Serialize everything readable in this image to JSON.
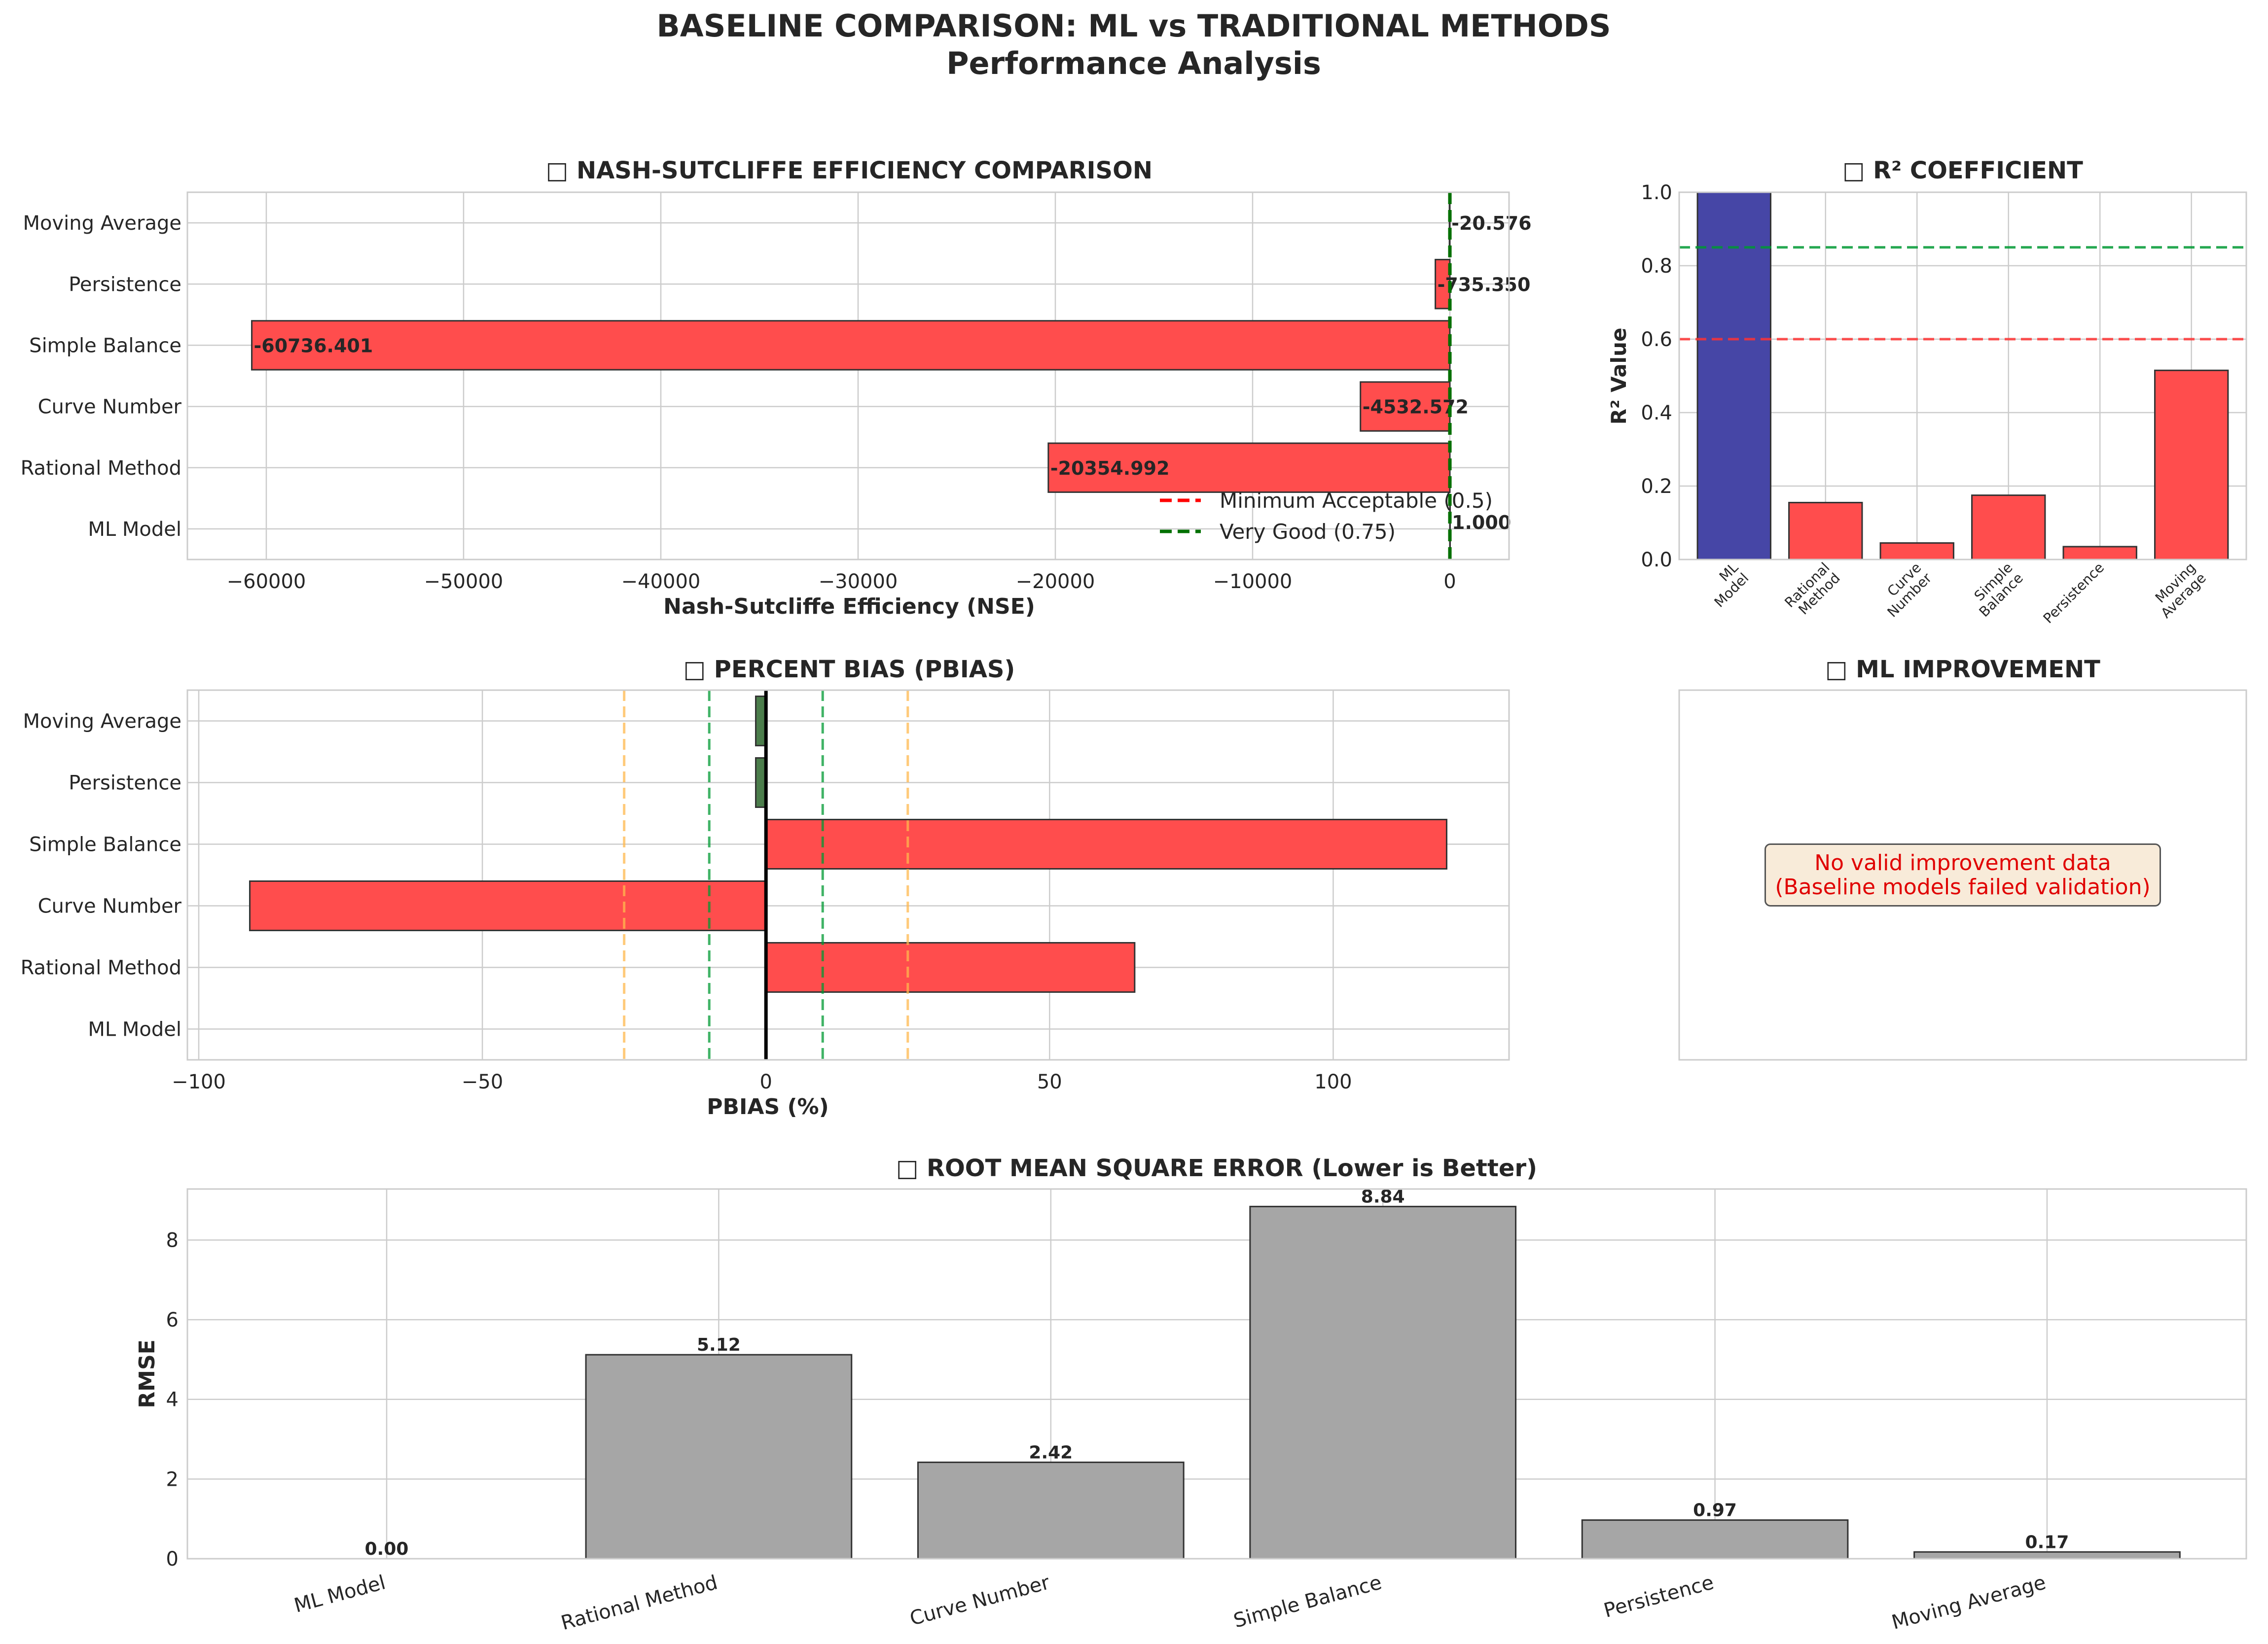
{
  "figure": {
    "title_line1": "BASELINE COMPARISON: ML vs TRADITIONAL METHODS",
    "title_line2": "Performance Analysis"
  },
  "colors": {
    "bad": "#ff4d4d",
    "good": "#4b7d4b",
    "ml": "#4646a6",
    "neutral": "#a6a6a6",
    "ref_red": "#ff3333",
    "ref_green": "#009933",
    "ref_orange": "#ffb84d"
  },
  "chart_data": [
    {
      "id": "nse",
      "type": "bar",
      "orientation": "horizontal",
      "title": "□ NASH-SUTCLIFFE EFFICIENCY COMPARISON",
      "xlabel": "Nash-Sutcliffe Efficiency (NSE)",
      "categories": [
        "ML Model",
        "Rational Method",
        "Curve Number",
        "Simple Balance",
        "Persistence",
        "Moving Average"
      ],
      "values": [
        1.0,
        -20354.992,
        -4532.572,
        -60736.401,
        -735.35,
        -20.576
      ],
      "labels": [
        "1.000",
        "-20354.992",
        "-4532.572",
        "-60736.401",
        "-735.350",
        "-20.576"
      ],
      "xlim": [
        -64000,
        3000
      ],
      "xticks": [
        -60000,
        -50000,
        -40000,
        -30000,
        -20000,
        -10000,
        0
      ],
      "xtick_labels": [
        "−60000",
        "−50000",
        "−40000",
        "−30000",
        "−20000",
        "−10000",
        "0"
      ],
      "reference_lines": [
        {
          "value": 0.5,
          "label": "Minimum Acceptable (0.5)",
          "color": "red"
        },
        {
          "value": 0.75,
          "label": "Very Good (0.75)",
          "color": "green"
        }
      ],
      "legend": "lower-right",
      "grid": true
    },
    {
      "id": "r2",
      "type": "bar",
      "title": "□ R² COEFFICIENT",
      "ylabel": "R² Value",
      "categories": [
        "ML\nModel",
        "Rational\nMethod",
        "Curve\nNumber",
        "Simple\nBalance",
        "Persistence",
        "Moving\nAverage"
      ],
      "values": [
        1.0,
        0.155,
        0.045,
        0.175,
        0.035,
        0.515
      ],
      "ylim": [
        0,
        1.0
      ],
      "yticks": [
        0.0,
        0.2,
        0.4,
        0.6,
        0.8,
        1.0
      ],
      "ytick_labels": [
        "0.0",
        "0.2",
        "0.4",
        "0.6",
        "0.8",
        "1.0"
      ],
      "reference_lines": [
        {
          "value": 0.6,
          "color": "red"
        },
        {
          "value": 0.85,
          "color": "green"
        }
      ],
      "grid": true
    },
    {
      "id": "pbias",
      "type": "bar",
      "orientation": "horizontal",
      "title": "□ PERCENT BIAS (PBIAS)",
      "xlabel": "PBIAS (%)",
      "categories": [
        "ML Model",
        "Rational Method",
        "Curve Number",
        "Simple Balance",
        "Persistence",
        "Moving Average"
      ],
      "values": [
        0.0,
        65.0,
        -91.0,
        120.0,
        -1.8,
        -1.8
      ],
      "xlim": [
        -102,
        131
      ],
      "xticks": [
        -100,
        -50,
        0,
        50,
        100
      ],
      "xtick_labels": [
        "−100",
        "−50",
        "0",
        "50",
        "100"
      ],
      "reference_lines": [
        {
          "value": -25,
          "color": "orange"
        },
        {
          "value": 25,
          "color": "orange"
        },
        {
          "value": -10,
          "color": "green"
        },
        {
          "value": 10,
          "color": "green"
        },
        {
          "value": 0,
          "color": "black"
        }
      ],
      "grid": true
    },
    {
      "id": "rmse",
      "type": "bar",
      "title": "□ ROOT MEAN SQUARE ERROR (Lower is Better)",
      "ylabel": "RMSE",
      "categories": [
        "ML Model",
        "Rational Method",
        "Curve Number",
        "Simple Balance",
        "Persistence",
        "Moving Average"
      ],
      "values": [
        0.0,
        5.12,
        2.42,
        8.84,
        0.97,
        0.17
      ],
      "labels": [
        "0.00",
        "5.12",
        "2.42",
        "8.84",
        "0.97",
        "0.17"
      ],
      "ylim": [
        0,
        9.28
      ],
      "yticks": [
        0,
        2,
        4,
        6,
        8
      ],
      "ytick_labels": [
        "0",
        "2",
        "4",
        "6",
        "8"
      ],
      "grid": true
    }
  ],
  "improvement_panel": {
    "title": "□ ML IMPROVEMENT",
    "message": "No valid improvement data\n(Baseline models failed validation)"
  }
}
